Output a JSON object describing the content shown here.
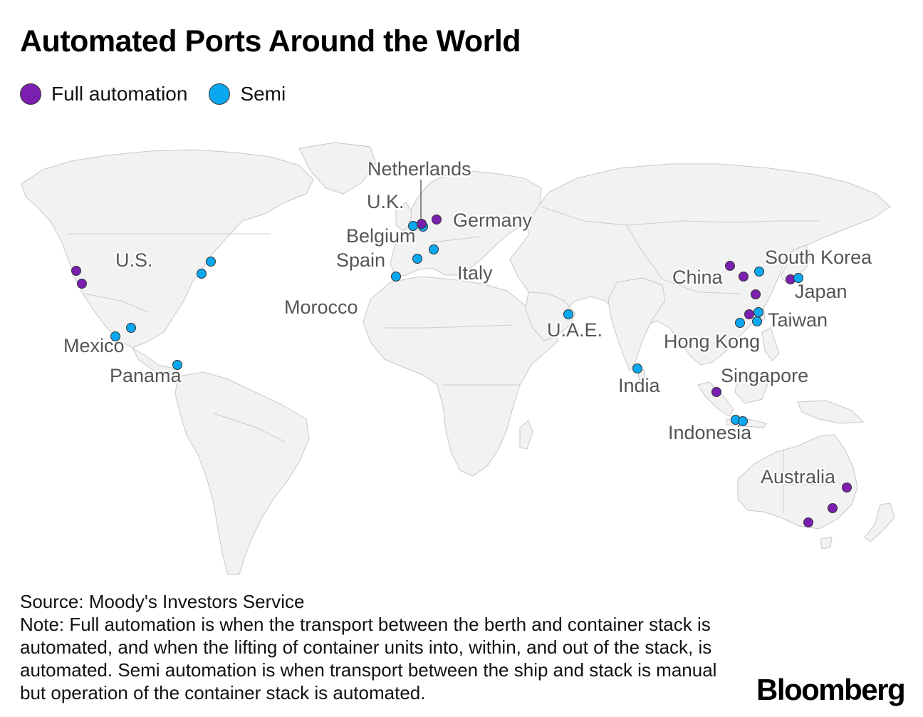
{
  "title": "Automated Ports Around the World",
  "legend": [
    {
      "label": "Full automation",
      "color": "#7b1fb0"
    },
    {
      "label": "Semi",
      "color": "#0aa8f0"
    }
  ],
  "map": {
    "land_fill": "#f2f2f2",
    "highlight_fill": "#e8e8e8",
    "border_color": "#c8c8c8",
    "labels": [
      {
        "text": "Netherlands"
      },
      {
        "text": "U.K."
      },
      {
        "text": "Germany"
      },
      {
        "text": "Belgium"
      },
      {
        "text": "Spain"
      },
      {
        "text": "Italy"
      },
      {
        "text": "Morocco"
      },
      {
        "text": "U.S."
      },
      {
        "text": "Mexico"
      },
      {
        "text": "Panama"
      },
      {
        "text": "U.A.E."
      },
      {
        "text": "India"
      },
      {
        "text": "China"
      },
      {
        "text": "South Korea"
      },
      {
        "text": "Japan"
      },
      {
        "text": "Taiwan"
      },
      {
        "text": "Hong Kong"
      },
      {
        "text": "Singapore"
      },
      {
        "text": "Indonesia"
      },
      {
        "text": "Australia"
      }
    ],
    "ports": [
      {
        "country": "U.S.",
        "type": "full"
      },
      {
        "country": "U.S.",
        "type": "full"
      },
      {
        "country": "U.S.",
        "type": "semi"
      },
      {
        "country": "U.S.",
        "type": "semi"
      },
      {
        "country": "Mexico",
        "type": "semi"
      },
      {
        "country": "Mexico",
        "type": "semi"
      },
      {
        "country": "Panama",
        "type": "semi"
      },
      {
        "country": "U.K.",
        "type": "semi"
      },
      {
        "country": "Belgium",
        "type": "semi"
      },
      {
        "country": "Netherlands",
        "type": "full"
      },
      {
        "country": "Germany",
        "type": "full"
      },
      {
        "country": "Italy",
        "type": "semi"
      },
      {
        "country": "Spain",
        "type": "semi"
      },
      {
        "country": "Morocco",
        "type": "semi"
      },
      {
        "country": "U.A.E.",
        "type": "semi"
      },
      {
        "country": "India",
        "type": "semi"
      },
      {
        "country": "China",
        "type": "full"
      },
      {
        "country": "China",
        "type": "full"
      },
      {
        "country": "China",
        "type": "full"
      },
      {
        "country": "China",
        "type": "full"
      },
      {
        "country": "South Korea",
        "type": "semi"
      },
      {
        "country": "Japan",
        "type": "full"
      },
      {
        "country": "Japan",
        "type": "semi"
      },
      {
        "country": "Taiwan",
        "type": "semi"
      },
      {
        "country": "Taiwan",
        "type": "semi"
      },
      {
        "country": "Hong Kong",
        "type": "semi"
      },
      {
        "country": "Singapore",
        "type": "full"
      },
      {
        "country": "Indonesia",
        "type": "semi"
      },
      {
        "country": "Indonesia",
        "type": "semi"
      },
      {
        "country": "Australia",
        "type": "full"
      },
      {
        "country": "Australia",
        "type": "full"
      },
      {
        "country": "Australia",
        "type": "full"
      }
    ]
  },
  "footer": {
    "source": "Source: Moody's Investors Service",
    "note": "Note: Full automation is when the transport between the berth and container stack is automated, and when the lifting of container units into, within, and out of the stack, is automated. Semi automation is when transport between the ship and stack is manual but operation of the container stack is automated."
  },
  "brand": "Bloomberg"
}
